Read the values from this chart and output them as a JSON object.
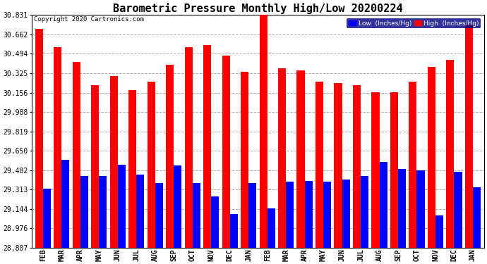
{
  "title": "Barometric Pressure Monthly High/Low 20200224",
  "copyright": "Copyright 2020 Cartronics.com",
  "legend_low": "Low  (Inches/Hg)",
  "legend_high": "High  (Inches/Hg)",
  "months": [
    "FEB",
    "MAR",
    "APR",
    "MAY",
    "JUN",
    "JUL",
    "AUG",
    "SEP",
    "OCT",
    "NOV",
    "DEC",
    "JAN",
    "FEB",
    "MAR",
    "APR",
    "MAY",
    "JUN",
    "JUL",
    "AUG",
    "SEP",
    "OCT",
    "NOV",
    "DEC",
    "JAN"
  ],
  "high_values": [
    30.71,
    30.55,
    30.42,
    30.22,
    30.3,
    30.18,
    30.25,
    30.4,
    30.55,
    30.57,
    30.48,
    30.34,
    30.83,
    30.37,
    30.35,
    30.25,
    30.24,
    30.22,
    30.16,
    30.16,
    30.25,
    30.38,
    30.44,
    30.75
  ],
  "low_values": [
    29.32,
    29.57,
    29.43,
    29.43,
    29.53,
    29.44,
    29.37,
    29.52,
    29.37,
    29.25,
    29.1,
    29.37,
    29.15,
    29.38,
    29.39,
    29.38,
    29.4,
    29.43,
    29.55,
    29.49,
    29.48,
    29.09,
    29.47,
    29.33
  ],
  "yticks": [
    28.807,
    28.976,
    29.144,
    29.313,
    29.482,
    29.65,
    29.819,
    29.988,
    30.156,
    30.325,
    30.494,
    30.662,
    30.831
  ],
  "ymin": 28.807,
  "ymax": 30.831,
  "bar_width": 0.42,
  "high_color": "#FF0000",
  "low_color": "#0000FF",
  "bg_color": "#FFFFFF",
  "grid_color": "#AAAAAA",
  "title_fontsize": 11,
  "tick_fontsize": 7,
  "xlabel_fontsize": 7
}
